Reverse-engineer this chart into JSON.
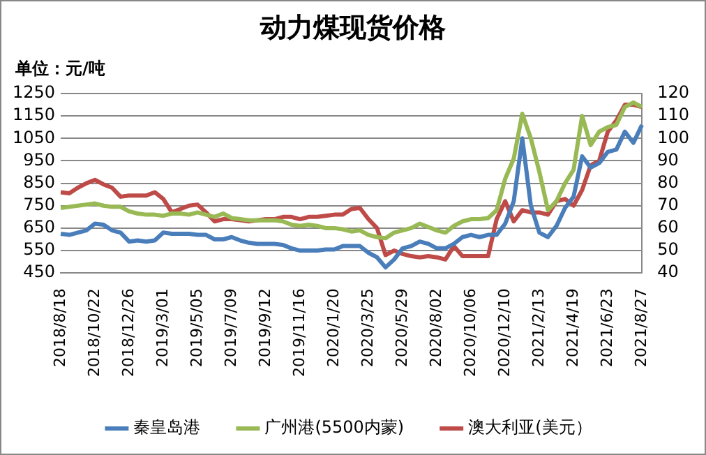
{
  "chart_data": {
    "type": "line",
    "title": "动力煤现货价格",
    "ylabel": "单位：元/吨",
    "categories": [
      "2018/8/18",
      null,
      null,
      null,
      "2018/10/22",
      null,
      null,
      null,
      "2018/12/26",
      null,
      null,
      null,
      "2019/3/01",
      null,
      null,
      null,
      "2019/5/05",
      null,
      null,
      null,
      "2019/7/09",
      null,
      null,
      null,
      "2019/9/12",
      null,
      null,
      null,
      "2019/11/16",
      null,
      null,
      null,
      "2020/1/20",
      null,
      null,
      null,
      "2020/3/25",
      null,
      null,
      null,
      "2020/5/29",
      null,
      null,
      null,
      "2020/8/02",
      null,
      null,
      null,
      "2020/10/06",
      null,
      null,
      null,
      "2020/12/10",
      null,
      null,
      null,
      "2021/2/13",
      null,
      null,
      null,
      "2021/4/19",
      null,
      null,
      null,
      "2021/6/23",
      null,
      null,
      null,
      "2021/8/27"
    ],
    "series": [
      {
        "name": "秦皇岛港",
        "color": "#4a7ebb",
        "values": [
          625,
          620,
          630,
          640,
          670,
          665,
          640,
          630,
          590,
          595,
          590,
          595,
          630,
          625,
          625,
          625,
          620,
          620,
          600,
          600,
          610,
          595,
          585,
          580,
          580,
          580,
          575,
          560,
          550,
          550,
          550,
          555,
          555,
          570,
          570,
          570,
          540,
          520,
          475,
          510,
          560,
          570,
          590,
          580,
          560,
          560,
          580,
          610,
          620,
          610,
          620,
          620,
          670,
          770,
          1050,
          750,
          630,
          610,
          660,
          740,
          790,
          970,
          920,
          940,
          990,
          1000,
          1080,
          1030,
          1110
        ]
      },
      {
        "name": "广州港(5500内蒙)",
        "color": "#98b954",
        "values": [
          740,
          745,
          750,
          755,
          760,
          750,
          745,
          745,
          725,
          715,
          710,
          710,
          705,
          715,
          715,
          710,
          720,
          710,
          700,
          715,
          695,
          690,
          685,
          685,
          685,
          685,
          680,
          665,
          660,
          665,
          660,
          650,
          650,
          645,
          635,
          640,
          620,
          610,
          605,
          630,
          640,
          650,
          670,
          655,
          640,
          630,
          660,
          680,
          690,
          690,
          695,
          730,
          870,
          960,
          1160,
          1050,
          900,
          730,
          770,
          850,
          910,
          1150,
          1020,
          1080,
          1100,
          1110,
          1190,
          1210,
          1190
        ]
      },
      {
        "name": "澳大利亚(美元）",
        "color": "#be4b48",
        "axis": "y2",
        "values": [
          76,
          75.5,
          78,
          80,
          81.5,
          79.5,
          78,
          74,
          74.5,
          74.5,
          74.5,
          76,
          73,
          67,
          68.5,
          70,
          70.5,
          67,
          63,
          64,
          64,
          63.5,
          63,
          63.5,
          64,
          64,
          65,
          65,
          64,
          65,
          65,
          65.5,
          66,
          66,
          68.5,
          69,
          64,
          60,
          48,
          50,
          48.5,
          47.5,
          47,
          47.5,
          47,
          46,
          52,
          47.5,
          47.5,
          47.5,
          47.5,
          64,
          72,
          63,
          68,
          67,
          67,
          66,
          72,
          73,
          70,
          77,
          88,
          90,
          103,
          108,
          115,
          115,
          114
        ]
      }
    ],
    "ylim": [
      450,
      1250
    ],
    "yticks": [
      450,
      550,
      650,
      750,
      850,
      950,
      1050,
      1150,
      1250
    ],
    "y2lim": [
      40,
      120
    ],
    "y2ticks": [
      40,
      50,
      60,
      70,
      80,
      90,
      100,
      110,
      120
    ],
    "grid": "y",
    "legend": "bottom",
    "marker": "none",
    "line_style": "solid"
  }
}
